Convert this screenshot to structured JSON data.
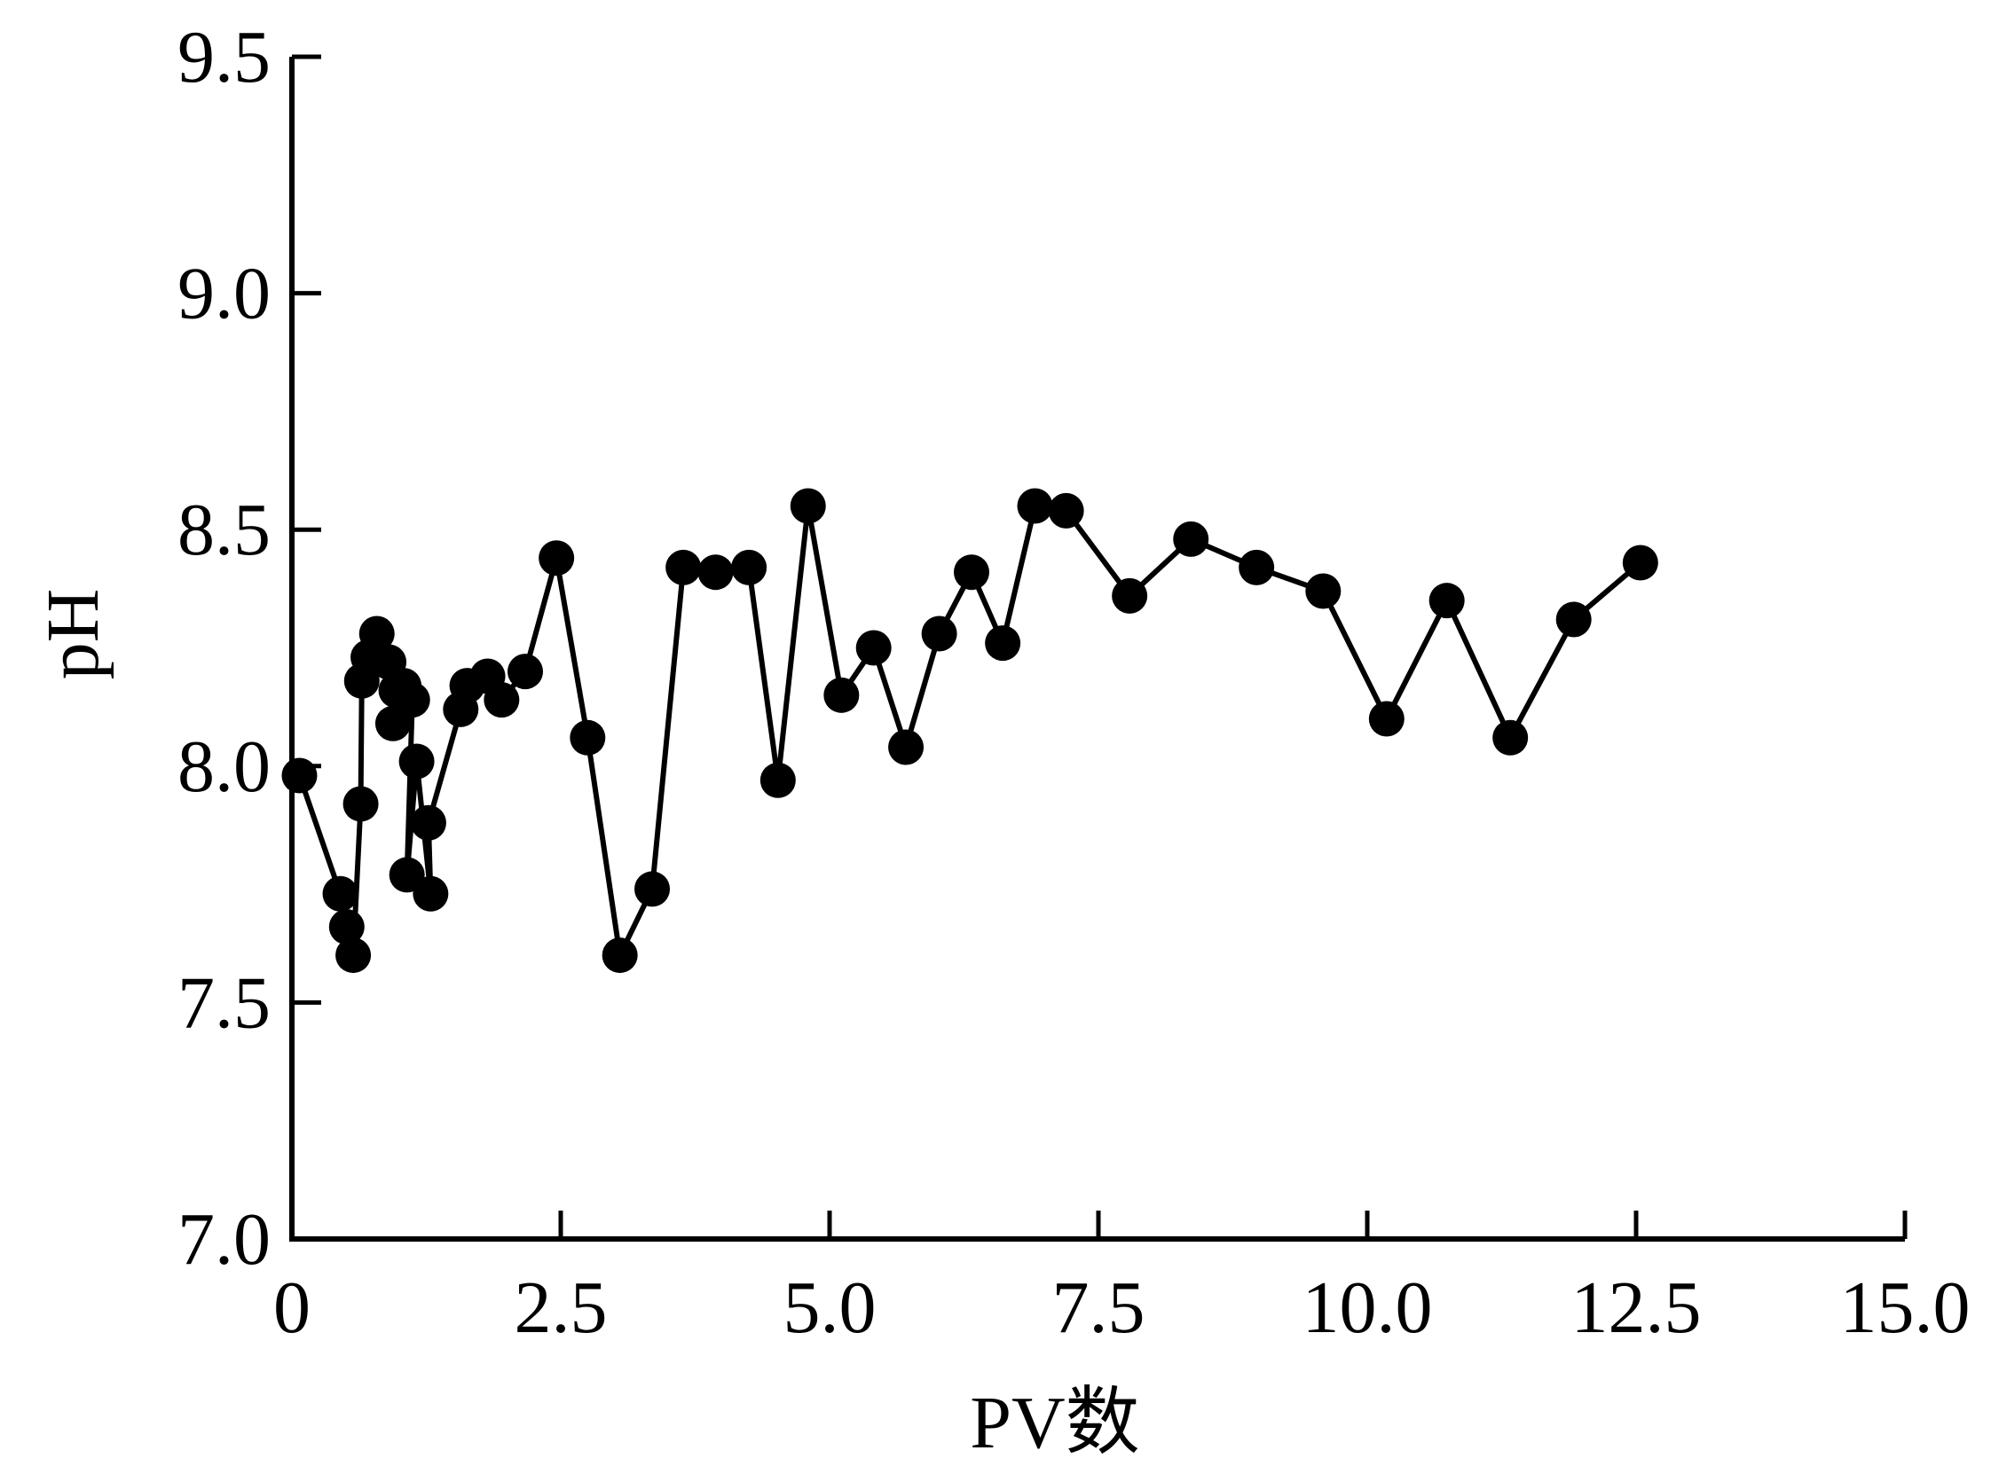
{
  "chart_data": {
    "type": "line",
    "title": "",
    "xlabel": "PV数",
    "ylabel": "pH",
    "xlim": [
      0,
      15
    ],
    "ylim": [
      7.0,
      9.5
    ],
    "xticks": [
      "0",
      "2.5",
      "5.0",
      "7.5",
      "10.0",
      "12.5",
      "15.0"
    ],
    "xtick_values": [
      0,
      2.5,
      5,
      7.5,
      10,
      12.5,
      15
    ],
    "yticks": [
      "7.0",
      "7.5",
      "8.0",
      "8.5",
      "9.0",
      "9.5"
    ],
    "ytick_values": [
      7.0,
      7.5,
      8.0,
      8.5,
      9.0,
      9.5
    ],
    "grid": false,
    "marker": "filled-circle",
    "color": "#000000",
    "series": [
      {
        "x": [
          0.07,
          0.45,
          0.51,
          0.57,
          0.64,
          0.65,
          0.71,
          0.79,
          0.9,
          0.97,
          0.94,
          1.04,
          1.12,
          1.07,
          1.16,
          1.29,
          1.27,
          1.57,
          1.63,
          1.82,
          1.95,
          2.17,
          2.46,
          2.75,
          3.05,
          3.35,
          3.64,
          3.94,
          4.25,
          4.52,
          4.8,
          5.11,
          5.41,
          5.71,
          6.02,
          6.32,
          6.61,
          6.91,
          7.2,
          7.79,
          8.36,
          8.97,
          9.59,
          10.18,
          10.74,
          11.33,
          11.92,
          12.54
        ],
        "y": [
          7.98,
          7.73,
          7.66,
          7.6,
          7.92,
          8.18,
          8.23,
          8.28,
          8.22,
          8.16,
          8.09,
          8.17,
          8.14,
          7.77,
          8.01,
          7.73,
          7.88,
          8.12,
          8.17,
          8.19,
          8.14,
          8.2,
          8.44,
          8.06,
          7.6,
          7.74,
          8.42,
          8.41,
          8.42,
          7.97,
          8.55,
          8.15,
          8.25,
          8.04,
          8.28,
          8.41,
          8.26,
          8.55,
          8.54,
          8.36,
          8.48,
          8.42,
          8.37,
          8.1,
          8.35,
          8.06,
          8.31,
          8.43
        ]
      }
    ]
  }
}
